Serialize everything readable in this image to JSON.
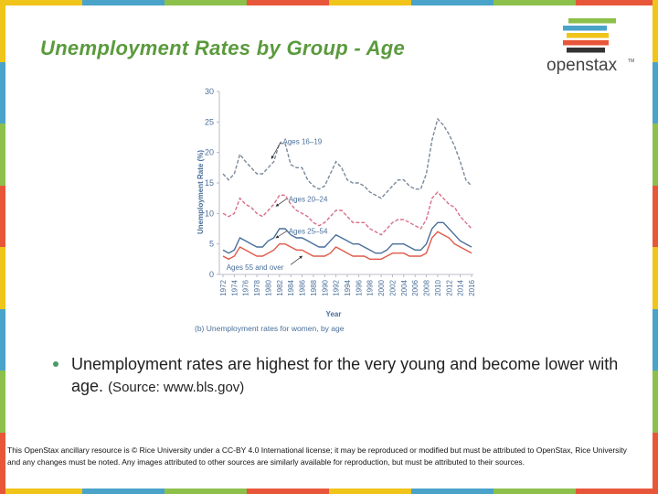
{
  "slide": {
    "title": "Unemployment Rates by Group - Age",
    "logo_text": "openstax",
    "logo_tm": "TM",
    "bullet_main": "Unemployment rates are highest for the very young and become lower with age.",
    "bullet_source": "(Source: www.bls.gov)",
    "footer": "This OpenStax ancillary resource is © Rice University under a CC-BY 4.0 International license; it may be reproduced or modified but must be attributed to OpenStax, Rice University and any changes must be noted.  Any images attributed to other sources are similarly available for reproduction, but must be attributed to their sources.",
    "border_colors": [
      "#f0c419",
      "#4aa3c9",
      "#8cc04b",
      "#e8563a",
      "#f0c419",
      "#4aa3c9",
      "#8cc04b",
      "#e8563a"
    ],
    "logo_bar_colors": [
      "#8cc04b",
      "#4aa3c9",
      "#f0c419",
      "#e8563a",
      "#333333"
    ],
    "title_color": "#5a9a3c"
  },
  "chart_data": {
    "type": "line",
    "caption": "(b) Unemployment rates for women, by age",
    "xlabel": "Year",
    "ylabel": "Unemployment Rate (%)",
    "ylim": [
      0,
      30
    ],
    "yticks": [
      0,
      5,
      10,
      15,
      20,
      25,
      30
    ],
    "xticks": [
      1972,
      1974,
      1976,
      1978,
      1980,
      1982,
      1984,
      1986,
      1988,
      1990,
      1992,
      1994,
      1996,
      1998,
      2000,
      2002,
      2004,
      2006,
      2008,
      2010,
      2012,
      2014,
      2016
    ],
    "x": [
      1972,
      1973,
      1974,
      1975,
      1976,
      1977,
      1978,
      1979,
      1980,
      1981,
      1982,
      1983,
      1984,
      1985,
      1986,
      1987,
      1988,
      1989,
      1990,
      1991,
      1992,
      1993,
      1994,
      1995,
      1996,
      1997,
      1998,
      1999,
      2000,
      2001,
      2002,
      2003,
      2004,
      2005,
      2006,
      2007,
      2008,
      2009,
      2010,
      2011,
      2012,
      2013,
      2014,
      2015,
      2016
    ],
    "series": [
      {
        "name": "Ages 16–19",
        "color": "#7a8a9a",
        "values": [
          16.5,
          15.5,
          16.5,
          19.7,
          18.5,
          17.5,
          16.5,
          16.5,
          17.5,
          18.5,
          21.5,
          21.5,
          18.0,
          17.5,
          17.5,
          15.5,
          14.5,
          14.0,
          14.5,
          16.5,
          18.5,
          17.5,
          15.5,
          15.0,
          15.0,
          14.5,
          13.5,
          13.0,
          12.5,
          13.5,
          14.5,
          15.5,
          15.5,
          14.5,
          14.0,
          14.0,
          16.5,
          22.0,
          25.5,
          24.5,
          23.0,
          21.0,
          18.5,
          15.5,
          14.5
        ]
      },
      {
        "name": "Ages 20–24",
        "color": "#d6708a",
        "values": [
          10.0,
          9.5,
          10.0,
          12.5,
          11.5,
          11.0,
          10.0,
          9.5,
          10.5,
          11.5,
          13.0,
          13.0,
          11.5,
          10.5,
          10.0,
          9.5,
          8.5,
          8.0,
          8.5,
          9.5,
          10.5,
          10.5,
          9.5,
          8.5,
          8.5,
          8.5,
          7.5,
          7.0,
          6.5,
          7.5,
          8.5,
          9.0,
          9.0,
          8.5,
          8.0,
          7.5,
          9.0,
          12.5,
          13.5,
          12.5,
          11.5,
          11.0,
          9.5,
          8.5,
          7.5
        ]
      },
      {
        "name": "Ages 25–54",
        "color": "#4a6f9a",
        "values": [
          4.0,
          3.5,
          4.0,
          6.0,
          5.5,
          5.0,
          4.5,
          4.5,
          5.5,
          6.0,
          7.5,
          7.5,
          6.5,
          6.0,
          6.0,
          5.5,
          5.0,
          4.5,
          4.5,
          5.5,
          6.5,
          6.0,
          5.5,
          5.0,
          5.0,
          4.5,
          4.0,
          3.5,
          3.5,
          4.0,
          5.0,
          5.0,
          5.0,
          4.5,
          4.0,
          4.0,
          5.0,
          7.5,
          8.5,
          8.5,
          7.5,
          6.5,
          5.5,
          5.0,
          4.5
        ]
      },
      {
        "name": "Ages 55 and over",
        "color": "#e05a4a",
        "values": [
          3.0,
          2.5,
          3.0,
          4.5,
          4.0,
          3.5,
          3.0,
          3.0,
          3.5,
          4.0,
          5.0,
          5.0,
          4.5,
          4.0,
          4.0,
          3.5,
          3.0,
          3.0,
          3.0,
          3.5,
          4.5,
          4.0,
          3.5,
          3.0,
          3.0,
          3.0,
          2.5,
          2.5,
          2.5,
          3.0,
          3.5,
          3.5,
          3.5,
          3.0,
          3.0,
          3.0,
          3.5,
          6.0,
          7.0,
          6.5,
          6.0,
          5.0,
          4.5,
          4.0,
          3.5
        ]
      }
    ],
    "annotations": [
      "Ages 16–19",
      "Ages 20–24",
      "Ages 25–54",
      "Ages 55 and over"
    ]
  }
}
